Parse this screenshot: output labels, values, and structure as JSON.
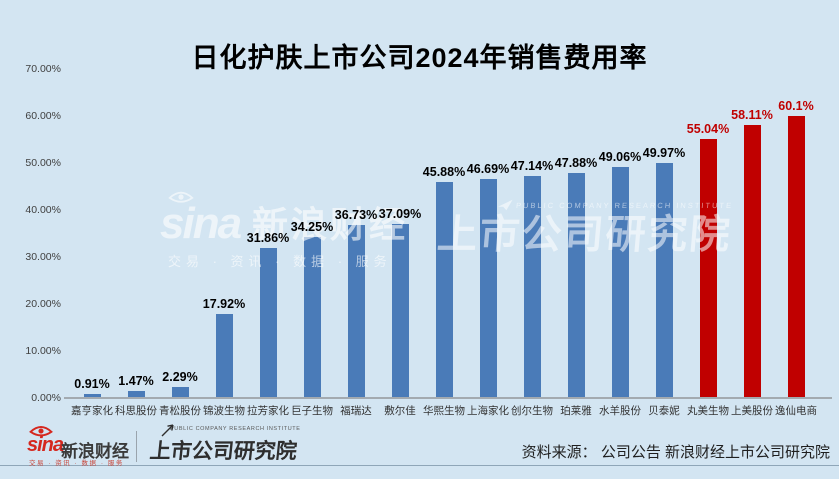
{
  "page": {
    "background_color": "#d3e5f2"
  },
  "chart_data": {
    "type": "bar",
    "title": "日化护肤上市公司2024年销售费用率",
    "xlabel": "",
    "ylabel": "",
    "ylim": [
      0,
      70
    ],
    "y_tick_labels": [
      "0.00%",
      "10.00%",
      "20.00%",
      "30.00%",
      "40.00%",
      "50.00%",
      "60.00%",
      "70.00%"
    ],
    "grid": false,
    "legend": false,
    "categories": [
      "嘉亨家化",
      "科思股份",
      "青松股份",
      "锦波生物",
      "拉芳家化",
      "巨子生物",
      "福瑞达",
      "敷尔佳",
      "华熙生物",
      "上海家化",
      "创尔生物",
      "珀莱雅",
      "水羊股份",
      "贝泰妮",
      "丸美生物",
      "上美股份",
      "逸仙电商"
    ],
    "values": [
      0.91,
      1.47,
      2.29,
      17.92,
      31.86,
      34.25,
      36.73,
      37.09,
      45.88,
      46.69,
      47.14,
      47.88,
      49.06,
      49.97,
      55.04,
      58.11,
      60.1
    ],
    "value_labels": [
      "0.91%",
      "1.47%",
      "2.29%",
      "17.92%",
      "31.86%",
      "34.25%",
      "36.73%",
      "37.09%",
      "45.88%",
      "46.69%",
      "47.14%",
      "47.88%",
      "49.06%",
      "49.97%",
      "55.04%",
      "58.11%",
      "60.1%"
    ],
    "highlight_start_index": 14,
    "colors": {
      "bar_default": "#4a7bb8",
      "bar_highlight": "#c00000",
      "value_label_default": "#000000",
      "value_label_highlight": "#c00000"
    }
  },
  "watermarks": {
    "sina_wordmark": "sina",
    "sina_cjk": "新浪财经",
    "sina_tagline": "交易 · 资讯 · 数据 · 服务",
    "institute_en": "PUBLIC COMPANY RESEARCH INSTITUTE",
    "institute_cjk": "上市公司研究院"
  },
  "footer": {
    "sina_wordmark": "sina",
    "sina_cjk": "新浪财经",
    "sina_tagline": "交易 · 资讯 · 数据 · 服务",
    "institute_en": "PUBLIC COMPANY RESEARCH INSTITUTE",
    "institute_cjk": "上市公司研究院",
    "source": "资料来源： 公司公告 新浪财经上市公司研究院"
  }
}
